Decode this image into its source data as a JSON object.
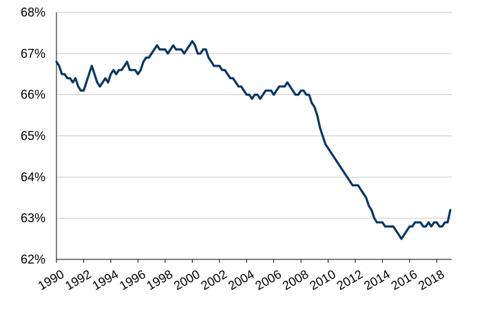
{
  "chart_data": {
    "type": "line",
    "title": "",
    "xlabel": "",
    "ylabel": "",
    "xlim": [
      1990,
      2019.1
    ],
    "ylim": [
      62,
      68
    ],
    "grid": true,
    "legend": "none",
    "colors": {
      "line": "#083763",
      "grid": "#c8c8c8",
      "axis": "#000000"
    },
    "y_ticks": [
      "62%",
      "63%",
      "64%",
      "65%",
      "66%",
      "67%",
      "68%"
    ],
    "y_tick_values": [
      62,
      63,
      64,
      65,
      66,
      67,
      68
    ],
    "x_ticks": [
      "1990",
      "1992",
      "1994",
      "1996",
      "1998",
      "2000",
      "2002",
      "2004",
      "2006",
      "2008",
      "2010",
      "2012",
      "2014",
      "2016",
      "2018"
    ],
    "x_tick_values": [
      1990,
      1992,
      1994,
      1996,
      1998,
      2000,
      2002,
      2004,
      2006,
      2008,
      2010,
      2012,
      2014,
      2016,
      2018
    ],
    "series": [
      {
        "x": [
          1990.0,
          1990.2,
          1990.4,
          1990.6,
          1990.8,
          1991.0,
          1991.2,
          1991.4,
          1991.6,
          1991.8,
          1992.0,
          1992.2,
          1992.4,
          1992.6,
          1992.8,
          1993.0,
          1993.2,
          1993.4,
          1993.6,
          1993.8,
          1994.0,
          1994.2,
          1994.4,
          1994.6,
          1994.8,
          1995.0,
          1995.2,
          1995.4,
          1995.6,
          1995.8,
          1996.0,
          1996.2,
          1996.4,
          1996.6,
          1996.8,
          1997.0,
          1997.2,
          1997.4,
          1997.6,
          1997.8,
          1998.0,
          1998.2,
          1998.4,
          1998.6,
          1998.8,
          1999.0,
          1999.2,
          1999.4,
          1999.6,
          1999.8,
          2000.0,
          2000.2,
          2000.4,
          2000.6,
          2000.8,
          2001.0,
          2001.2,
          2001.4,
          2001.6,
          2001.8,
          2002.0,
          2002.2,
          2002.4,
          2002.6,
          2002.8,
          2003.0,
          2003.2,
          2003.4,
          2003.6,
          2003.8,
          2004.0,
          2004.2,
          2004.4,
          2004.6,
          2004.8,
          2005.0,
          2005.2,
          2005.4,
          2005.6,
          2005.8,
          2006.0,
          2006.2,
          2006.4,
          2006.6,
          2006.8,
          2007.0,
          2007.2,
          2007.4,
          2007.6,
          2007.8,
          2008.0,
          2008.2,
          2008.4,
          2008.6,
          2008.8,
          2009.0,
          2009.2,
          2009.4,
          2009.6,
          2009.8,
          2010.0,
          2010.2,
          2010.4,
          2010.6,
          2010.8,
          2011.0,
          2011.2,
          2011.4,
          2011.6,
          2011.8,
          2012.0,
          2012.2,
          2012.4,
          2012.6,
          2012.8,
          2013.0,
          2013.2,
          2013.4,
          2013.6,
          2013.8,
          2014.0,
          2014.2,
          2014.4,
          2014.6,
          2014.8,
          2015.0,
          2015.2,
          2015.4,
          2015.6,
          2015.8,
          2016.0,
          2016.2,
          2016.4,
          2016.6,
          2016.8,
          2017.0,
          2017.2,
          2017.4,
          2017.6,
          2017.8,
          2018.0,
          2018.2,
          2018.4,
          2018.6,
          2018.8,
          2019.0
        ],
        "values": [
          66.8,
          66.7,
          66.5,
          66.5,
          66.4,
          66.4,
          66.3,
          66.4,
          66.2,
          66.1,
          66.1,
          66.3,
          66.5,
          66.7,
          66.5,
          66.3,
          66.2,
          66.3,
          66.4,
          66.3,
          66.5,
          66.6,
          66.5,
          66.6,
          66.6,
          66.7,
          66.8,
          66.6,
          66.6,
          66.6,
          66.5,
          66.6,
          66.8,
          66.9,
          66.9,
          67.0,
          67.1,
          67.2,
          67.1,
          67.1,
          67.1,
          67.0,
          67.1,
          67.2,
          67.1,
          67.1,
          67.1,
          67.0,
          67.1,
          67.2,
          67.3,
          67.2,
          67.0,
          67.0,
          67.1,
          67.1,
          66.9,
          66.8,
          66.7,
          66.7,
          66.7,
          66.6,
          66.6,
          66.5,
          66.4,
          66.4,
          66.3,
          66.2,
          66.2,
          66.1,
          66.0,
          66.0,
          65.9,
          66.0,
          66.0,
          65.9,
          66.0,
          66.1,
          66.1,
          66.1,
          66.0,
          66.1,
          66.2,
          66.2,
          66.2,
          66.3,
          66.2,
          66.1,
          66.0,
          66.0,
          66.1,
          66.1,
          66.0,
          66.0,
          65.8,
          65.7,
          65.5,
          65.2,
          65.0,
          64.8,
          64.7,
          64.6,
          64.5,
          64.4,
          64.3,
          64.2,
          64.1,
          64.0,
          63.9,
          63.8,
          63.8,
          63.8,
          63.7,
          63.6,
          63.5,
          63.3,
          63.2,
          63.0,
          62.9,
          62.9,
          62.9,
          62.8,
          62.8,
          62.8,
          62.8,
          62.7,
          62.6,
          62.5,
          62.6,
          62.7,
          62.8,
          62.8,
          62.9,
          62.9,
          62.9,
          62.8,
          62.8,
          62.9,
          62.8,
          62.9,
          62.9,
          62.8,
          62.8,
          62.9,
          62.9,
          63.2
        ]
      }
    ]
  }
}
